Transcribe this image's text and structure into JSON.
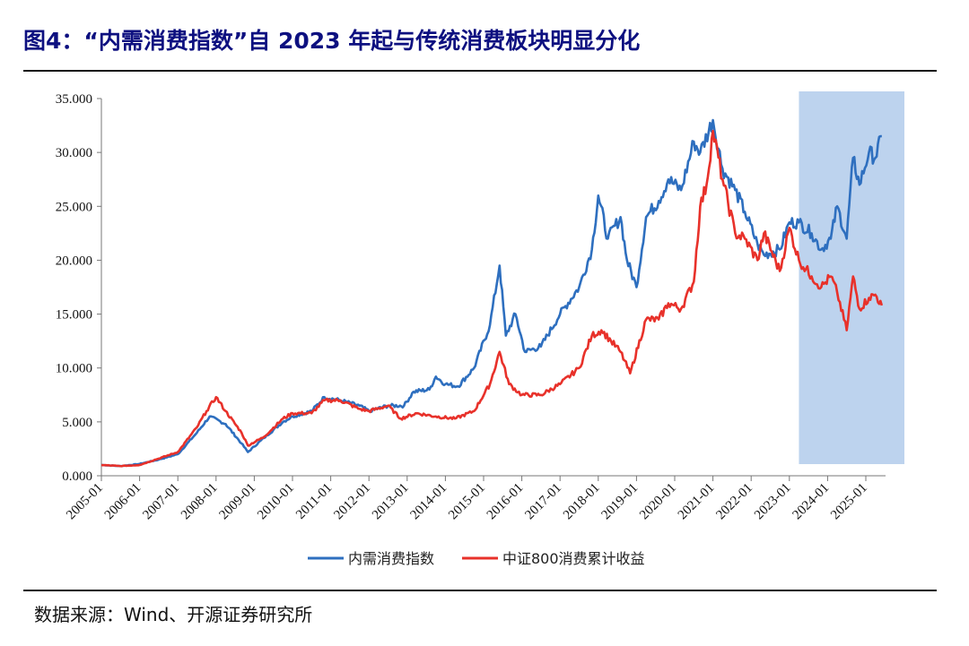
{
  "title": "图4：“内需消费指数”自 2023 年起与传统消费板块明显分化",
  "source": "数据来源：Wind、开源证券研究所",
  "chart_data": {
    "type": "line",
    "title": "",
    "xlabel": "",
    "ylabel": "",
    "ylim": [
      0,
      35
    ],
    "xlim": [
      "2005-01",
      "2025-07"
    ],
    "y_ticks": [
      "0.000",
      "5.000",
      "10.000",
      "15.000",
      "20.000",
      "25.000",
      "30.000",
      "35.000"
    ],
    "x_ticks": [
      "2005-01",
      "2006-01",
      "2007-01",
      "2008-01",
      "2009-01",
      "2010-01",
      "2011-01",
      "2012-01",
      "2013-01",
      "2014-01",
      "2015-01",
      "2016-01",
      "2017-01",
      "2018-01",
      "2019-01",
      "2020-01",
      "2021-01",
      "2022-01",
      "2023-01",
      "2024-01",
      "2025-01"
    ],
    "grid": false,
    "legend_position": "bottom",
    "highlight_region": {
      "from": "2023-04",
      "to": "2025-12",
      "color": "#bdd3ee"
    },
    "series": [
      {
        "name": "内需消费指数",
        "color": "#2e6fbf",
        "points": [
          [
            "2005-01",
            1.0
          ],
          [
            "2005-07",
            0.9
          ],
          [
            "2006-01",
            1.1
          ],
          [
            "2006-07",
            1.5
          ],
          [
            "2007-01",
            2.0
          ],
          [
            "2007-07",
            4.0
          ],
          [
            "2007-11",
            5.5
          ],
          [
            "2008-04",
            4.8
          ],
          [
            "2008-09",
            3.0
          ],
          [
            "2008-11",
            2.2
          ],
          [
            "2009-04",
            3.5
          ],
          [
            "2009-10",
            5.0
          ],
          [
            "2010-01",
            5.5
          ],
          [
            "2010-07",
            6.0
          ],
          [
            "2010-11",
            7.3
          ],
          [
            "2011-04",
            7.0
          ],
          [
            "2011-10",
            6.5
          ],
          [
            "2012-01",
            6.0
          ],
          [
            "2012-07",
            6.5
          ],
          [
            "2012-12",
            6.5
          ],
          [
            "2013-03",
            7.8
          ],
          [
            "2013-08",
            8.0
          ],
          [
            "2013-10",
            9.2
          ],
          [
            "2014-01",
            8.5
          ],
          [
            "2014-05",
            8.3
          ],
          [
            "2014-10",
            10.0
          ],
          [
            "2015-03",
            14.0
          ],
          [
            "2015-06",
            19.5
          ],
          [
            "2015-08",
            13.0
          ],
          [
            "2015-11",
            15.0
          ],
          [
            "2016-02",
            11.5
          ],
          [
            "2016-07",
            12.0
          ],
          [
            "2017-01",
            15.0
          ],
          [
            "2017-07",
            17.5
          ],
          [
            "2017-11",
            21.0
          ],
          [
            "2018-01",
            26.0
          ],
          [
            "2018-04",
            22.0
          ],
          [
            "2018-08",
            24.0
          ],
          [
            "2018-10",
            20.0
          ],
          [
            "2019-01",
            17.5
          ],
          [
            "2019-04",
            24.0
          ],
          [
            "2019-08",
            25.5
          ],
          [
            "2019-11",
            27.5
          ],
          [
            "2020-03",
            26.5
          ],
          [
            "2020-07",
            31.0
          ],
          [
            "2020-09",
            30.0
          ],
          [
            "2021-01",
            33.0
          ],
          [
            "2021-04",
            28.5
          ],
          [
            "2021-08",
            26.5
          ],
          [
            "2021-11",
            24.5
          ],
          [
            "2022-03",
            21.5
          ],
          [
            "2022-05",
            20.5
          ],
          [
            "2022-10",
            21.0
          ],
          [
            "2023-01",
            23.5
          ],
          [
            "2023-04",
            23.5
          ],
          [
            "2023-08",
            22.5
          ],
          [
            "2023-11",
            21.0
          ],
          [
            "2024-02",
            22.0
          ],
          [
            "2024-04",
            25.0
          ],
          [
            "2024-07",
            22.0
          ],
          [
            "2024-09",
            29.5
          ],
          [
            "2024-11",
            27.0
          ],
          [
            "2025-02",
            30.0
          ],
          [
            "2025-04",
            29.5
          ],
          [
            "2025-06",
            31.5
          ]
        ]
      },
      {
        "name": "中证800消费累计收益",
        "color": "#e8312a",
        "points": [
          [
            "2005-01",
            1.0
          ],
          [
            "2005-07",
            0.9
          ],
          [
            "2006-01",
            1.0
          ],
          [
            "2006-07",
            1.6
          ],
          [
            "2007-01",
            2.2
          ],
          [
            "2007-07",
            4.5
          ],
          [
            "2007-10",
            6.0
          ],
          [
            "2008-01",
            7.3
          ],
          [
            "2008-04",
            6.0
          ],
          [
            "2008-09",
            4.0
          ],
          [
            "2008-11",
            2.8
          ],
          [
            "2009-04",
            3.6
          ],
          [
            "2009-10",
            5.3
          ],
          [
            "2010-01",
            5.8
          ],
          [
            "2010-07",
            5.8
          ],
          [
            "2010-11",
            7.0
          ],
          [
            "2011-04",
            7.0
          ],
          [
            "2011-10",
            6.2
          ],
          [
            "2012-01",
            6.0
          ],
          [
            "2012-07",
            6.5
          ],
          [
            "2012-11",
            5.3
          ],
          [
            "2013-04",
            5.8
          ],
          [
            "2013-10",
            5.5
          ],
          [
            "2014-04",
            5.3
          ],
          [
            "2014-10",
            6.0
          ],
          [
            "2015-03",
            8.5
          ],
          [
            "2015-06",
            11.5
          ],
          [
            "2015-09",
            8.5
          ],
          [
            "2016-01",
            7.5
          ],
          [
            "2016-07",
            7.5
          ],
          [
            "2017-01",
            8.5
          ],
          [
            "2017-07",
            10.0
          ],
          [
            "2017-11",
            13.0
          ],
          [
            "2018-02",
            13.5
          ],
          [
            "2018-05",
            12.5
          ],
          [
            "2018-08",
            11.5
          ],
          [
            "2018-11",
            9.5
          ],
          [
            "2019-04",
            14.5
          ],
          [
            "2019-08",
            14.5
          ],
          [
            "2019-11",
            16.0
          ],
          [
            "2020-03",
            15.5
          ],
          [
            "2020-07",
            18.0
          ],
          [
            "2020-09",
            25.0
          ],
          [
            "2020-11",
            27.0
          ],
          [
            "2021-01",
            32.0
          ],
          [
            "2021-04",
            27.5
          ],
          [
            "2021-08",
            22.5
          ],
          [
            "2021-11",
            22.0
          ],
          [
            "2022-03",
            20.0
          ],
          [
            "2022-05",
            22.5
          ],
          [
            "2022-10",
            19.0
          ],
          [
            "2023-01",
            23.0
          ],
          [
            "2023-04",
            20.0
          ],
          [
            "2023-08",
            18.5
          ],
          [
            "2023-11",
            17.5
          ],
          [
            "2024-02",
            18.5
          ],
          [
            "2024-04",
            17.0
          ],
          [
            "2024-07",
            13.5
          ],
          [
            "2024-09",
            18.5
          ],
          [
            "2024-11",
            15.5
          ],
          [
            "2025-02",
            16.5
          ],
          [
            "2025-04",
            16.8
          ],
          [
            "2025-06",
            15.8
          ]
        ]
      }
    ]
  }
}
